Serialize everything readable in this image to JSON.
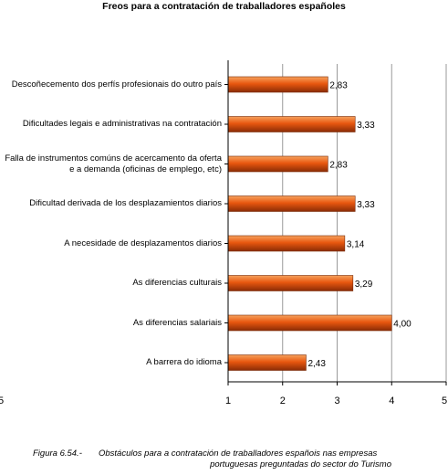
{
  "chart_data": {
    "type": "bar",
    "orientation": "horizontal",
    "title": "Freos para a contratación de traballadores españoles",
    "categories": [
      "Descoñecemento dos perfís profesionais do outro país",
      "Dificultades legais e administrativas na contratación",
      "Falla de instrumentos comúns de acercamento da oferta e a demanda (oficinas de emplego, etc)",
      "Dificultad derivada de los desplazamientos diarios",
      "A necesidade de desplazamentos diarios",
      "As diferencias culturais",
      "As diferencias salariais",
      "A barrera do idioma"
    ],
    "values": [
      2.83,
      3.33,
      2.83,
      3.33,
      3.14,
      3.29,
      4.0,
      2.43
    ],
    "value_labels": [
      "2,83",
      "3,33",
      "2,83",
      "3,33",
      "3,14",
      "3,29",
      "4,00",
      "2,43"
    ],
    "xlim": [
      1,
      5
    ],
    "x_ticks": [
      "1",
      "2",
      "3",
      "4",
      "5"
    ],
    "left_edge_label": "5",
    "grid": true,
    "bar_color": "#e8570f",
    "bar_highlight": "#f6a25d",
    "bar_shadow": "#8a2c06"
  },
  "caption": {
    "figure_number": "Figura 6.54.-",
    "line1": "Obstáculos para a contratación de traballadores españois nas empresas",
    "line2": "portuguesas preguntadas do sector do Turismo"
  }
}
